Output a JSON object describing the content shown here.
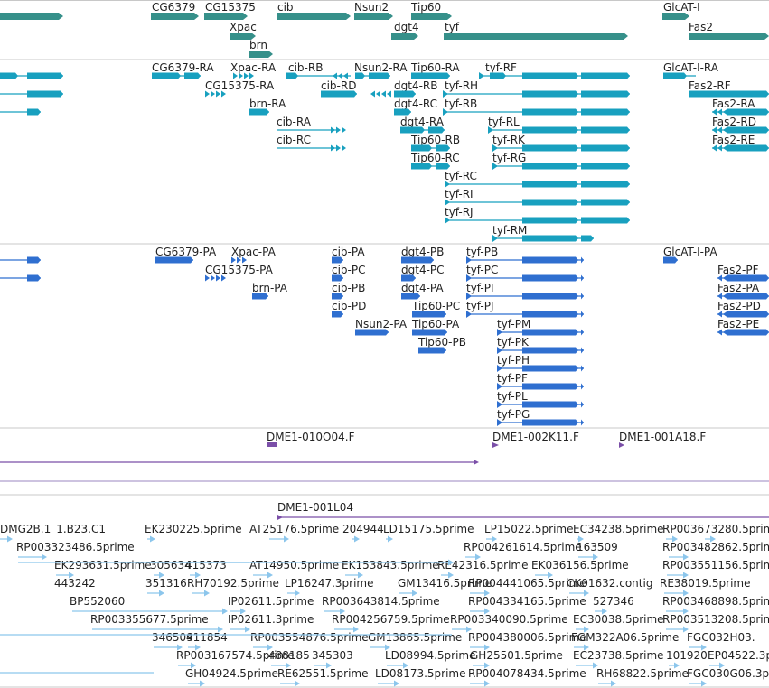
{
  "colors": {
    "gene": "#36908a",
    "transcript": "#18a0bf",
    "protein": "#2f6fd0",
    "bac": "#7b4fa8",
    "est": "#8cc6ec",
    "divider": "#c8c8c8"
  },
  "tracks": {
    "genes": {
      "labels": [
        "CG6379",
        "CG15375",
        "cib",
        "Nsun2",
        "Tip60",
        "GlcAT-I",
        "Xpac",
        "dgt4",
        "tyf",
        "Fas2",
        "brn"
      ]
    },
    "transcripts": {
      "labels": [
        "CG6379-RA",
        "Xpac-RA",
        "cib-RB",
        "Nsun2-RA",
        "Tip60-RA",
        "tyf-RF",
        "GlcAT-I-RA",
        "CG15375-RA",
        "cib-RD",
        "dgt4-RB",
        "tyf-RH",
        "Fas2-RF",
        "brn-RA",
        "dgt4-RC",
        "tyf-RB",
        "Fas2-RA",
        "cib-RA",
        "dgt4-RA",
        "tyf-RL",
        "Fas2-RD",
        "cib-RC",
        "Tip60-RB",
        "tyf-RK",
        "Fas2-RE",
        "Tip60-RC",
        "tyf-RG",
        "tyf-RC",
        "tyf-RI",
        "tyf-RJ",
        "tyf-RM"
      ]
    },
    "proteins": {
      "labels": [
        "CG6379-PA",
        "Xpac-PA",
        "cib-PA",
        "dgt4-PB",
        "tyf-PB",
        "GlcAT-I-PA",
        "CG15375-PA",
        "cib-PC",
        "dgt4-PC",
        "tyf-PC",
        "brn-PA",
        "cib-PB",
        "dgt4-PA",
        "tyf-PI",
        "Fas2-PF",
        "Fas2-PA",
        "cib-PD",
        "Tip60-PC",
        "tyf-PJ",
        "Fas2-PD",
        "Nsun2-PA",
        "Tip60-PA",
        "tyf-PM",
        "Fas2-PE",
        "Tip60-PB",
        "tyf-PK",
        "tyf-PH",
        "tyf-PF",
        "tyf-PL",
        "tyf-PG"
      ]
    },
    "bac": {
      "labels": [
        "DME1-010O04.F",
        "DME1-002K11.F",
        "DME1-001A18.F",
        "DME1-001L04"
      ]
    },
    "est": {
      "labels": [
        "DMG2B.1_1.B23.C1",
        "EK230225.5prime",
        "AT25176.5prime",
        "204944",
        "LD15175.5prime",
        "LP15022.5prime",
        "EC34238.5prime",
        "RP003673280.5prime",
        "RP003323486.5prime",
        "RP004261614.5prime",
        "163509",
        "RP003482862.5prime",
        "EK293631.5prime",
        "305634",
        "415373",
        "AT14950.5prime",
        "EK153843.5prime",
        "RE42316.5prime",
        "EK036156.5prime",
        "RP003551156.5prime",
        "443242",
        "351316",
        "RH70192.5prime",
        "LP16247.3prime",
        "GM13416.5prime",
        "RP004441065.5prime",
        "CK01632.contig",
        "RE38019.5prime",
        "BP552060",
        "IP02611.5prime",
        "RP003643814.5prime",
        "RP004334165.5prime",
        "527346",
        "RP003468898.5prime",
        "RP003355677.5prime",
        "IP02611.3prime",
        "RP004256759.5prime",
        "RP003340090.5prime",
        "EC30038.5prime",
        "RP003513208.5prime",
        "346509",
        "411854",
        "RP003554876.5prime",
        "GM13865.5prime",
        "RP004380006.5prime",
        "FGM322A06.5prime",
        "FGC032H03.",
        "RP003167574.5prime",
        "488185",
        "345303",
        "LD08994.5prime",
        "GH25501.5prime",
        "EC23738.5prime",
        "101920",
        "EP04522.3p",
        "GH04924.5prime",
        "RE62551.5prime",
        "LD08173.5prime",
        "RP004078434.5prime",
        "RH68822.5prime",
        "FGC030G06.3p"
      ]
    }
  }
}
